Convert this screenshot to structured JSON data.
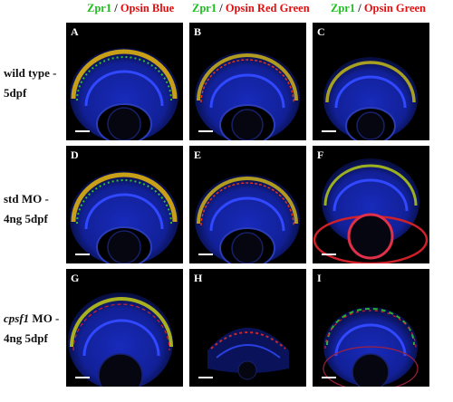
{
  "columns": [
    {
      "green": "Zpr1",
      "sep": " / ",
      "red": "Opsin Blue"
    },
    {
      "green": "Zpr1",
      "sep": " / ",
      "red": "Opsin Red Green"
    },
    {
      "green": "Zpr1",
      "sep": " / ",
      "red": "Opsin Green"
    }
  ],
  "rows": [
    {
      "line1": "wild type -",
      "line2": "5dpf"
    },
    {
      "line1_italic": "",
      "line1": "std MO -",
      "line2": "4ng 5dpf"
    },
    {
      "line1_italic": "cpsf1",
      "line1": " MO -",
      "line2": "4ng 5dpf"
    }
  ],
  "panels": [
    "A",
    "B",
    "C",
    "D",
    "E",
    "F",
    "G",
    "H",
    "I"
  ],
  "colors": {
    "green_label": "#1fbf1f",
    "red_label": "#e01010",
    "tissue_blue": "#1a2fd0"
  }
}
